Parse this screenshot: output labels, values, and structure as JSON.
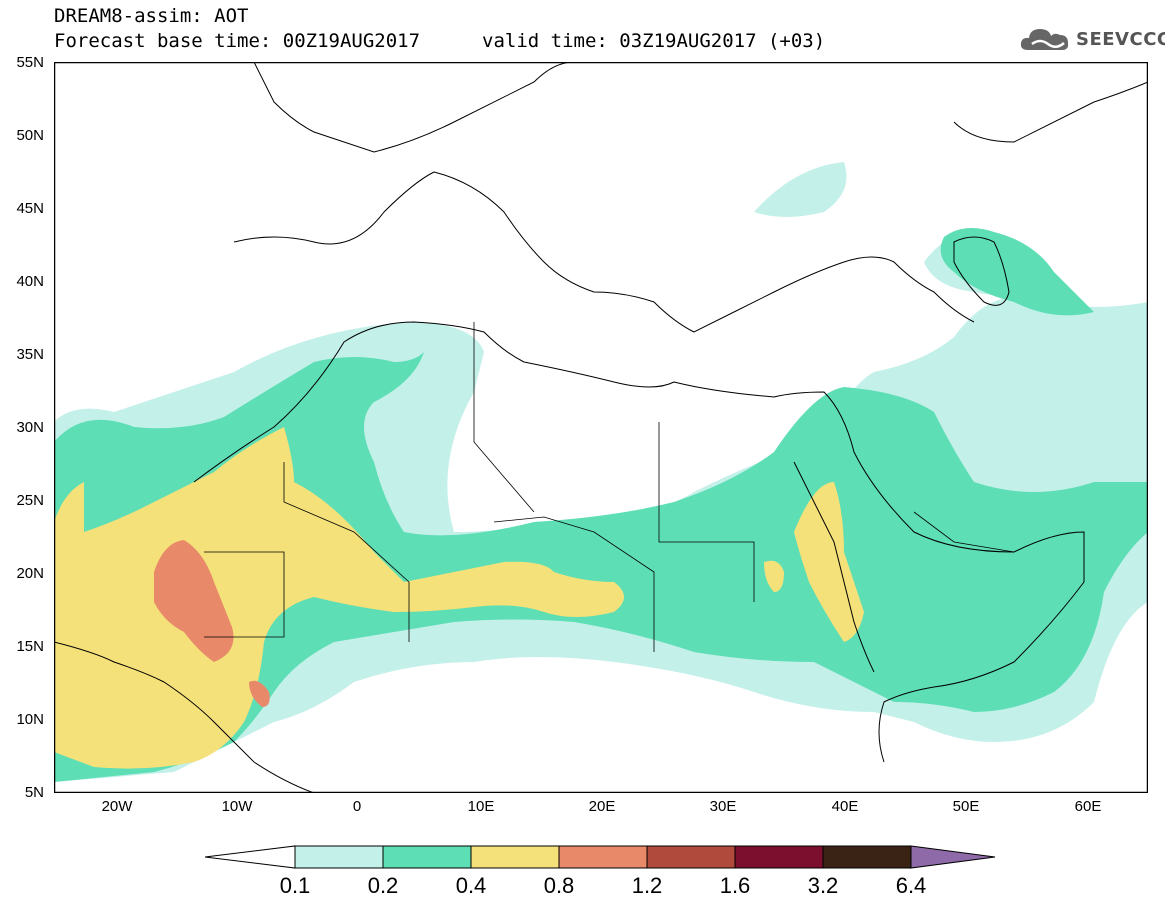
{
  "header": {
    "title_line1": "DREAM8-assim: AOT",
    "title_line2": "Forecast base time: 00Z19AUG2017",
    "valid_time": "valid time: 03Z19AUG2017 (+03)",
    "logo_text": "SEEVCCC",
    "logo_icon": "cloud-logo-icon"
  },
  "map": {
    "extent": {
      "lon": [
        -25,
        65
      ],
      "lat": [
        5,
        55
      ]
    },
    "lat_labels": [
      "55N",
      "50N",
      "45N",
      "40N",
      "35N",
      "30N",
      "25N",
      "20N",
      "15N",
      "10N",
      "5N"
    ],
    "lon_labels": [
      "20W",
      "10W",
      "0",
      "10E",
      "20E",
      "30E",
      "40E",
      "50E",
      "60E"
    ]
  },
  "colorbar": {
    "labels": [
      "0.1",
      "0.2",
      "0.4",
      "0.8",
      "1.2",
      "1.6",
      "3.2",
      "6.4"
    ],
    "colors": [
      "#ffffff",
      "#c4f0ea",
      "#5ddeb5",
      "#f5e17a",
      "#e8896a",
      "#b04a3c",
      "#7d0f2e",
      "#3a2214",
      "#8e6aa8"
    ]
  },
  "colors": {
    "level1": "#c4f0ea",
    "level2": "#5ddeb5",
    "level3": "#f5e17a",
    "level4": "#e8896a",
    "level5": "#b04a3c"
  }
}
